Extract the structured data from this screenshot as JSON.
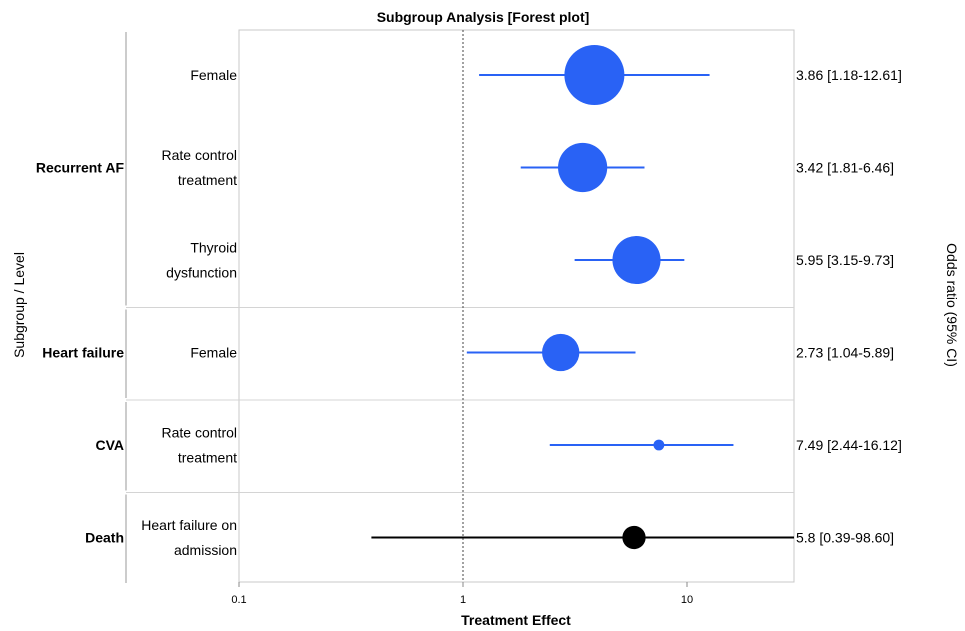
{
  "chart_data": {
    "type": "forest",
    "title": "Subgroup Analysis [Forest plot]",
    "xlabel": "Treatment Effect",
    "ylabel": "Subgroup / Level",
    "right_label": "Odds ratio (95% CI)",
    "x_scale": "log",
    "xlim": [
      0.1,
      30
    ],
    "x_ticks": [
      0.1,
      1,
      10
    ],
    "x_tick_labels": [
      "0.1",
      "1",
      "10"
    ],
    "reference_line": 1,
    "colors": {
      "blue": "#2962f5",
      "black": "#000000"
    },
    "groups": [
      {
        "name": "Recurrent AF",
        "rows": [
          {
            "level": [
              "Female"
            ],
            "or": 3.86,
            "lo": 1.18,
            "hi": 12.61,
            "label": "3.86 [1.18-12.61]",
            "weight": 1.0,
            "color": "blue"
          },
          {
            "level": [
              "Rate control",
              "treatment"
            ],
            "or": 3.42,
            "lo": 1.81,
            "hi": 6.46,
            "label": "3.42 [1.81-6.46]",
            "weight": 0.8,
            "color": "blue"
          },
          {
            "level": [
              "Thyroid",
              "dysfunction"
            ],
            "or": 5.95,
            "lo": 3.15,
            "hi": 9.73,
            "label": "5.95 [3.15-9.73]",
            "weight": 0.78,
            "color": "blue"
          }
        ]
      },
      {
        "name": "Heart failure",
        "rows": [
          {
            "level": [
              "Female"
            ],
            "or": 2.73,
            "lo": 1.04,
            "hi": 5.89,
            "label": "2.73 [1.04-5.89]",
            "weight": 0.58,
            "color": "blue"
          }
        ]
      },
      {
        "name": "CVA",
        "rows": [
          {
            "level": [
              "Rate control",
              "treatment"
            ],
            "or": 7.49,
            "lo": 2.44,
            "hi": 16.12,
            "label": "7.49 [2.44-16.12]",
            "weight": 0.09,
            "color": "blue"
          }
        ]
      },
      {
        "name": "Death",
        "rows": [
          {
            "level": [
              "Heart failure on",
              "admission"
            ],
            "or": 5.8,
            "lo": 0.39,
            "hi": 98.6,
            "label": "5.8 [0.39-98.60]",
            "weight": 0.32,
            "color": "black"
          }
        ]
      }
    ]
  }
}
